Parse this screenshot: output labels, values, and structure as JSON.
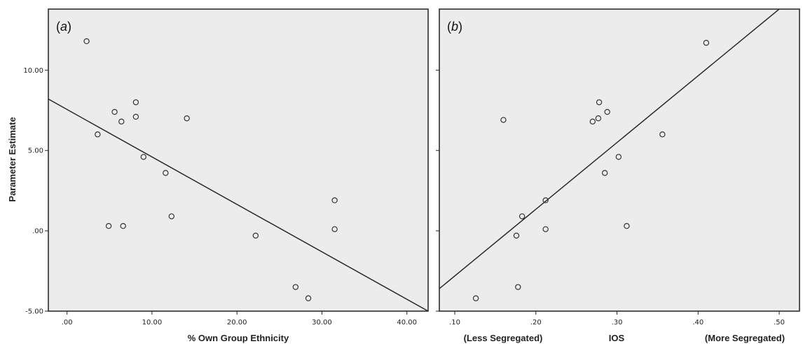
{
  "y_axis_title": "Parameter Estimate",
  "chart_data": [
    {
      "type": "scatter",
      "panel_label": "a",
      "xlabel": "% Own Group Ethnicity",
      "ylabel": "Parameter Estimate",
      "xlim": [
        -2.2,
        42.5
      ],
      "ylim": [
        -5.0,
        13.8
      ],
      "x_ticks": [
        0,
        10,
        20,
        30,
        40
      ],
      "x_tick_labels": [
        ".00",
        "10.00",
        "20.00",
        "30.00",
        "40.00"
      ],
      "y_ticks": [
        -5,
        0,
        5,
        10
      ],
      "y_tick_labels": [
        "-5.00",
        ".00",
        "5.00",
        "10.00"
      ],
      "points": [
        {
          "x": 2.3,
          "y": 11.8
        },
        {
          "x": 3.6,
          "y": 6.0
        },
        {
          "x": 5.6,
          "y": 7.4
        },
        {
          "x": 6.4,
          "y": 6.8
        },
        {
          "x": 8.1,
          "y": 8.0
        },
        {
          "x": 8.1,
          "y": 7.1
        },
        {
          "x": 9.0,
          "y": 4.6
        },
        {
          "x": 11.6,
          "y": 3.6
        },
        {
          "x": 14.1,
          "y": 7.0
        },
        {
          "x": 4.9,
          "y": 0.3
        },
        {
          "x": 6.6,
          "y": 0.3
        },
        {
          "x": 12.3,
          "y": 0.9
        },
        {
          "x": 22.2,
          "y": -0.3
        },
        {
          "x": 26.9,
          "y": -3.5
        },
        {
          "x": 28.4,
          "y": -4.2
        },
        {
          "x": 31.5,
          "y": 1.9
        },
        {
          "x": 31.5,
          "y": 0.1
        }
      ],
      "fit_line": {
        "x": [
          -2.2,
          42.5
        ],
        "y": [
          8.2,
          -5.0
        ]
      },
      "grid": false
    },
    {
      "type": "scatter",
      "panel_label": "b",
      "xlabel": "IOS",
      "x_end_labels": [
        "(Less Segregated)",
        "(More Segregated)"
      ],
      "xlim": [
        0.081,
        0.525
      ],
      "ylim": [
        -5.0,
        13.8
      ],
      "x_ticks": [
        0.1,
        0.2,
        0.3,
        0.4,
        0.5
      ],
      "x_tick_labels": [
        ".10",
        ".20",
        ".30",
        ".40",
        ".50"
      ],
      "y_ticks": [
        -5,
        0,
        5,
        10
      ],
      "points": [
        {
          "x": 0.126,
          "y": -4.2
        },
        {
          "x": 0.16,
          "y": 6.9
        },
        {
          "x": 0.176,
          "y": -0.3
        },
        {
          "x": 0.178,
          "y": -3.5
        },
        {
          "x": 0.183,
          "y": 0.9
        },
        {
          "x": 0.212,
          "y": 1.9
        },
        {
          "x": 0.212,
          "y": 0.1
        },
        {
          "x": 0.27,
          "y": 6.8
        },
        {
          "x": 0.277,
          "y": 7.0
        },
        {
          "x": 0.278,
          "y": 8.0
        },
        {
          "x": 0.285,
          "y": 3.6
        },
        {
          "x": 0.288,
          "y": 7.4
        },
        {
          "x": 0.302,
          "y": 4.6
        },
        {
          "x": 0.312,
          "y": 0.3
        },
        {
          "x": 0.356,
          "y": 6.0
        },
        {
          "x": 0.41,
          "y": 11.7
        }
      ],
      "fit_line": {
        "x": [
          0.081,
          0.5
        ],
        "y": [
          -3.6,
          13.8
        ]
      },
      "grid": false
    }
  ]
}
